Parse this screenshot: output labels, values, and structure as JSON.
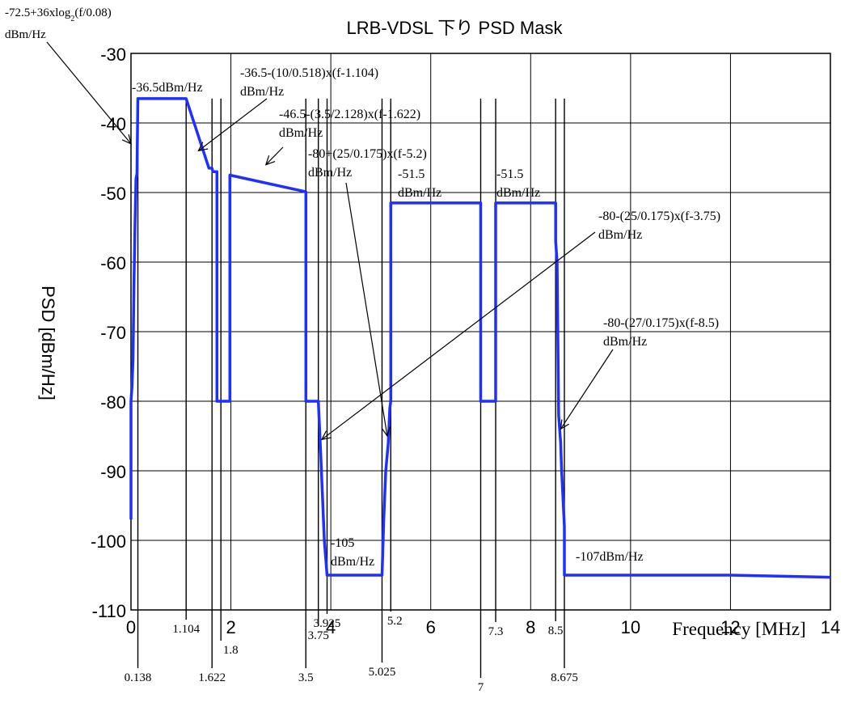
{
  "chart_data": {
    "type": "line",
    "title": "LRB-VDSL 下り PSD Mask",
    "xlabel": "Frequency [MHz]",
    "ylabel": "PSD [dBm/Hz]",
    "xlim": [
      0,
      14
    ],
    "ylim": [
      -110,
      -30
    ],
    "x_ticks": [
      "0",
      "2",
      "4",
      "6",
      "8",
      "10",
      "12",
      "14"
    ],
    "y_ticks": [
      "-30",
      "-40",
      "-50",
      "-60",
      "-70",
      "-80",
      "-90",
      "-100",
      "-110"
    ],
    "grid": true,
    "line_color": "#1f2fff",
    "series": [
      {
        "points": [
          [
            0.0,
            -97
          ],
          [
            0.0,
            -80
          ],
          [
            0.02,
            -78
          ],
          [
            0.04,
            -74
          ],
          [
            0.06,
            -63
          ],
          [
            0.08,
            -55
          ],
          [
            0.1,
            -48
          ],
          [
            0.12,
            -47.3
          ],
          [
            0.138,
            -36.5
          ],
          [
            1.104,
            -36.5
          ],
          [
            1.56,
            -46.5
          ],
          [
            1.622,
            -46.5
          ],
          [
            1.64,
            -47
          ],
          [
            1.72,
            -47
          ],
          [
            1.72,
            -80
          ],
          [
            1.98,
            -80
          ],
          [
            1.98,
            -47.5
          ],
          [
            3.5,
            -49.9
          ],
          [
            3.5,
            -80
          ],
          [
            3.72,
            -80
          ],
          [
            3.75,
            -80
          ],
          [
            3.8,
            -88
          ],
          [
            3.87,
            -100
          ],
          [
            3.925,
            -105
          ],
          [
            5.025,
            -105
          ],
          [
            5.06,
            -97
          ],
          [
            5.1,
            -90
          ],
          [
            5.15,
            -86
          ],
          [
            5.18,
            -81
          ],
          [
            5.2,
            -80
          ],
          [
            5.2,
            -51.5
          ],
          [
            7.0,
            -51.5
          ],
          [
            7.0,
            -80
          ],
          [
            7.3,
            -80
          ],
          [
            7.3,
            -51.5
          ],
          [
            8.5,
            -51.5
          ],
          [
            8.5,
            -57
          ],
          [
            8.53,
            -60
          ],
          [
            8.56,
            -82
          ],
          [
            8.6,
            -86
          ],
          [
            8.62,
            -90
          ],
          [
            8.675,
            -98
          ],
          [
            8.675,
            -105
          ],
          [
            12.0,
            -105
          ],
          [
            14.0,
            -105.3
          ]
        ]
      }
    ],
    "marker_lines": [
      {
        "x": 0.138,
        "label": "0.138"
      },
      {
        "x": 1.104,
        "label": "1.104"
      },
      {
        "x": 1.622,
        "label": "1.622"
      },
      {
        "x": 1.8,
        "label": "1.8"
      },
      {
        "x": 3.5,
        "label": "3.5"
      },
      {
        "x": 3.75,
        "label": "3.75"
      },
      {
        "x": 3.925,
        "label": "3.925"
      },
      {
        "x": 5.025,
        "label": "5.025"
      },
      {
        "x": 5.2,
        "label": "5.2"
      },
      {
        "x": 7.0,
        "label": "7"
      },
      {
        "x": 7.3,
        "label": "7.3"
      },
      {
        "x": 8.5,
        "label": "8.5"
      },
      {
        "x": 8.675,
        "label": "8.675"
      }
    ],
    "annotations": [
      {
        "lines": [
          "-72.5+36xlog",
          "2",
          "(f/0.08)"
        ],
        "subscript": true,
        "unit": "dBm/Hz",
        "target": [
          0.0,
          -43
        ]
      },
      {
        "lines": [
          "-36.5dBm/Hz"
        ]
      },
      {
        "lines": [
          "-36.5-(10/0.518)x(f-1.104)",
          "dBm/Hz"
        ],
        "target": [
          1.35,
          -44
        ]
      },
      {
        "lines": [
          "-46.5-(3.5/2.128)x(f-1.622)",
          "dBm/Hz"
        ],
        "target": [
          2.7,
          -46
        ]
      },
      {
        "lines": [
          "-80+(25/0.175)x(f-5.2)",
          "dBm/Hz"
        ],
        "target": [
          5.13,
          -85
        ]
      },
      {
        "lines": [
          "-51.5",
          "dBm/Hz"
        ]
      },
      {
        "lines": [
          "-51.5",
          "dBm/Hz"
        ]
      },
      {
        "lines": [
          "-80-(25/0.175)x(f-3.75)",
          "dBm/Hz"
        ],
        "target": [
          3.82,
          -85.5
        ]
      },
      {
        "lines": [
          "-80-(27/0.175)x(f-8.5)",
          "dBm/Hz"
        ],
        "target": [
          8.6,
          -84
        ]
      },
      {
        "lines": [
          "-105",
          "dBm/Hz"
        ]
      },
      {
        "lines": [
          "-107dBm/Hz"
        ]
      }
    ]
  }
}
